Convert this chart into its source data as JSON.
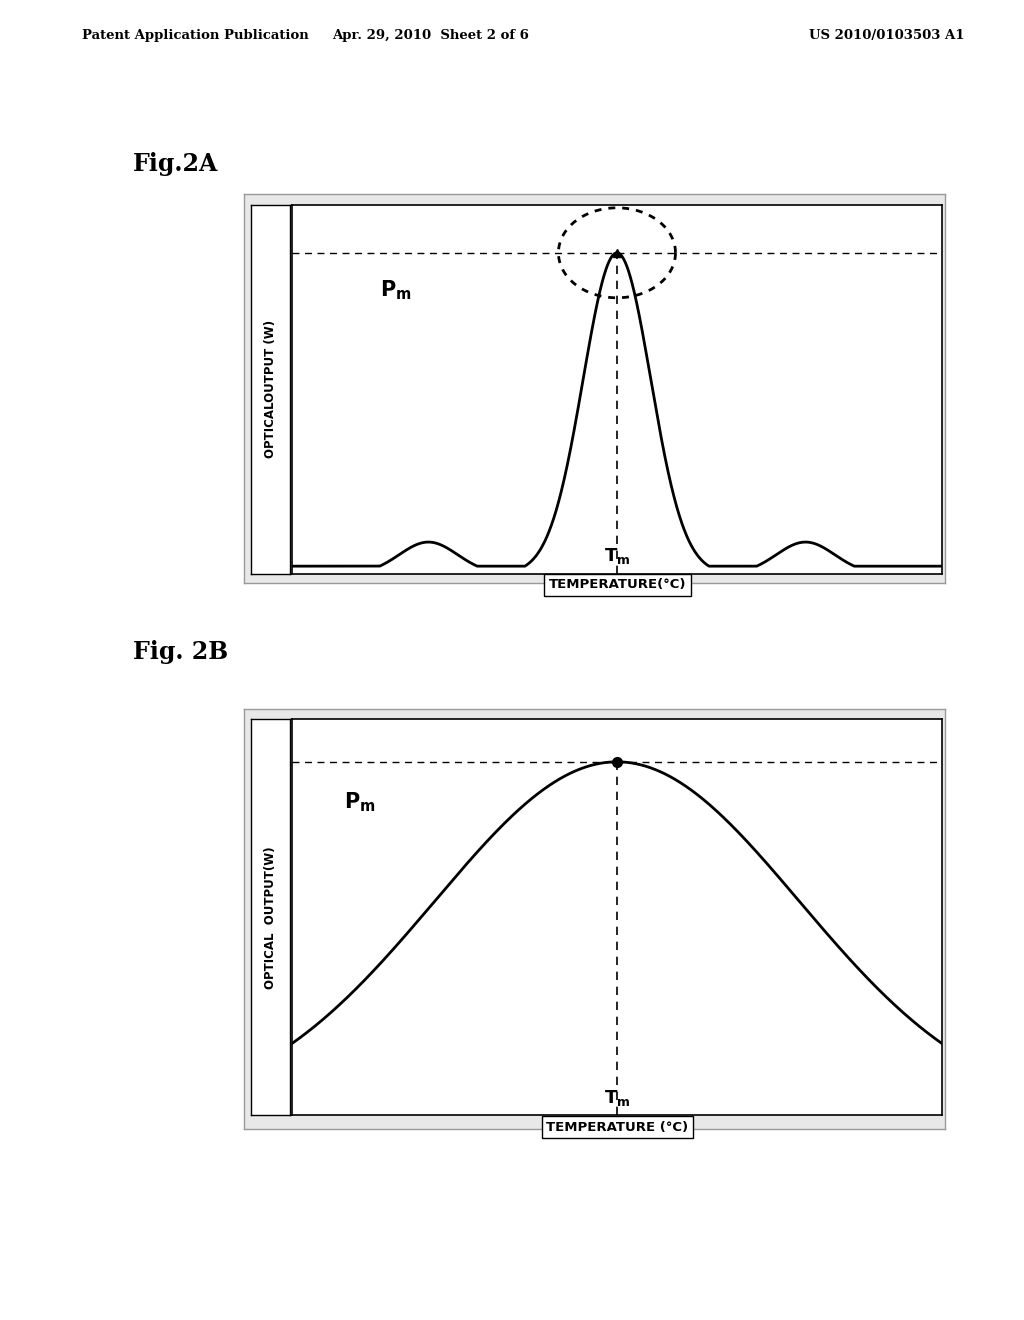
{
  "background_color": "#ffffff",
  "header_left": "Patent Application Publication",
  "header_center": "Apr. 29, 2010  Sheet 2 of 6",
  "header_right": "US 2010/0103503 A1",
  "fig2a_label": "Fig.2A",
  "fig2b_label": "Fig. 2B",
  "fig2a_ylabel": "OPTICALOUTPUT (W)",
  "fig2a_xlabel": "TEMPERATURE(°C)",
  "fig2b_ylabel": "OPTICAL  OUTPUT(W)",
  "fig2b_xlabel": "TEMPERATURE (°C)",
  "line_color": "#000000",
  "dashed_color": "#000000"
}
